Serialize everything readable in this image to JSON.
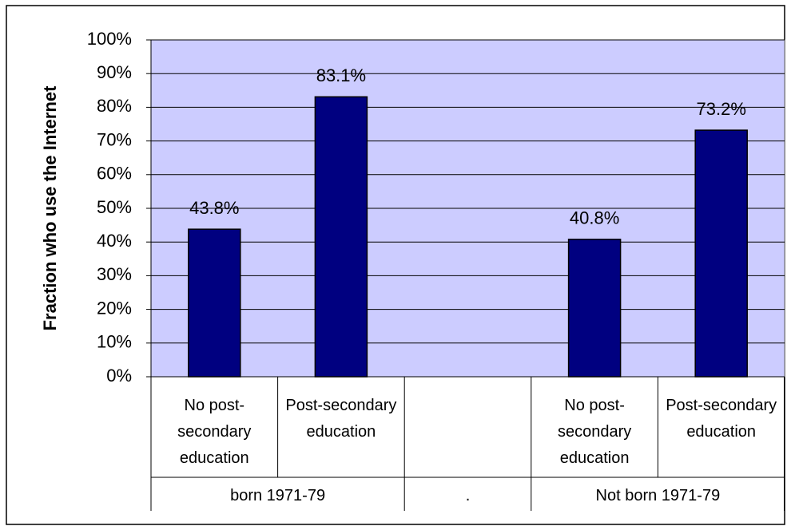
{
  "chart_data": {
    "type": "bar",
    "y_label": "Fraction who use the Internet",
    "categories": [
      "No post-secondary education",
      "Post-secondary education",
      null,
      "No post-secondary education",
      "Post-secondary education"
    ],
    "groups": [
      "born 1971-79",
      ".",
      "Not born 1971-79"
    ],
    "values": [
      43.8,
      83.1,
      null,
      40.8,
      73.2
    ],
    "value_labels": [
      "43.8%",
      "83.1%",
      null,
      "40.8%",
      "73.2%"
    ],
    "color": "#000080",
    "background": "#ccccff",
    "ylim": [
      0,
      100
    ],
    "yticks": [
      {
        "value": 0,
        "label": "0%"
      },
      {
        "value": 10,
        "label": "10%"
      },
      {
        "value": 20,
        "label": "20%"
      },
      {
        "value": 30,
        "label": "30%"
      },
      {
        "value": 40,
        "label": "40%"
      },
      {
        "value": 50,
        "label": "50%"
      },
      {
        "value": 60,
        "label": "60%"
      },
      {
        "value": 70,
        "label": "70%"
      },
      {
        "value": 80,
        "label": "80%"
      },
      {
        "value": 90,
        "label": "90%"
      },
      {
        "value": 100,
        "label": "100%"
      }
    ],
    "grid": true
  }
}
